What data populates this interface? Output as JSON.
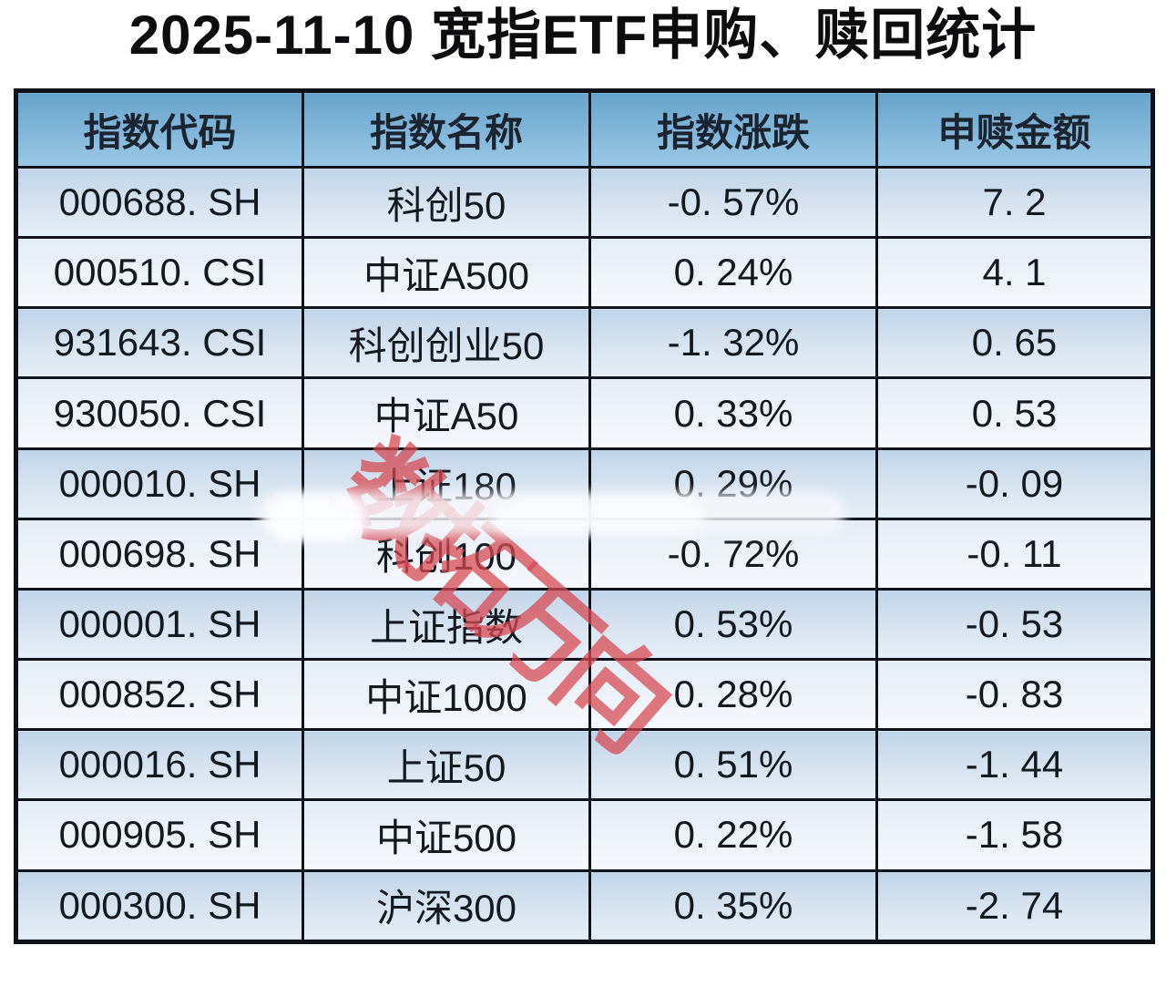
{
  "title": "2025-11-10 宽指ETF申购、赎回统计",
  "watermark": {
    "text": "数拓万向"
  },
  "chart_data": {
    "type": "table",
    "title": "2025-11-10 宽指ETF申购、赎回统计",
    "columns": [
      "指数代码",
      "指数名称",
      "指数涨跌",
      "申赎金额"
    ],
    "rows": [
      [
        "000688.SH",
        "科创50",
        "-0.57%",
        "7.2"
      ],
      [
        "000510.CSI",
        "中证A500",
        "0.24%",
        "4.1"
      ],
      [
        "931643.CSI",
        "科创创业50",
        "-1.32%",
        "0.65"
      ],
      [
        "930050.CSI",
        "中证A50",
        "0.33%",
        "0.53"
      ],
      [
        "000010.SH",
        "上证180",
        "0.29%",
        "-0.09"
      ],
      [
        "000698.SH",
        "科创100",
        "-0.72%",
        "-0.11"
      ],
      [
        "000001.SH",
        "上证指数",
        "0.53%",
        "-0.53"
      ],
      [
        "000852.SH",
        "中证1000",
        "0.28%",
        "-0.83"
      ],
      [
        "000016.SH",
        "上证50",
        "0.51%",
        "-1.44"
      ],
      [
        "000905.SH",
        "中证500",
        "0.22%",
        "-1.58"
      ],
      [
        "000300.SH",
        "沪深300",
        "0.35%",
        "-2.74"
      ]
    ],
    "layout": {
      "grid": true,
      "header_position": "top",
      "row_striping": "odd-dark"
    }
  },
  "colors": {
    "header_blue_top": "#67a3cc",
    "header_blue_bottom": "#98c8e5",
    "row_dark": "#bfd4e8",
    "row_light": "#e9eff6",
    "border": "#0f1219",
    "watermark_red": "#d74952",
    "text": "#14181f",
    "background": "#ffffff"
  }
}
